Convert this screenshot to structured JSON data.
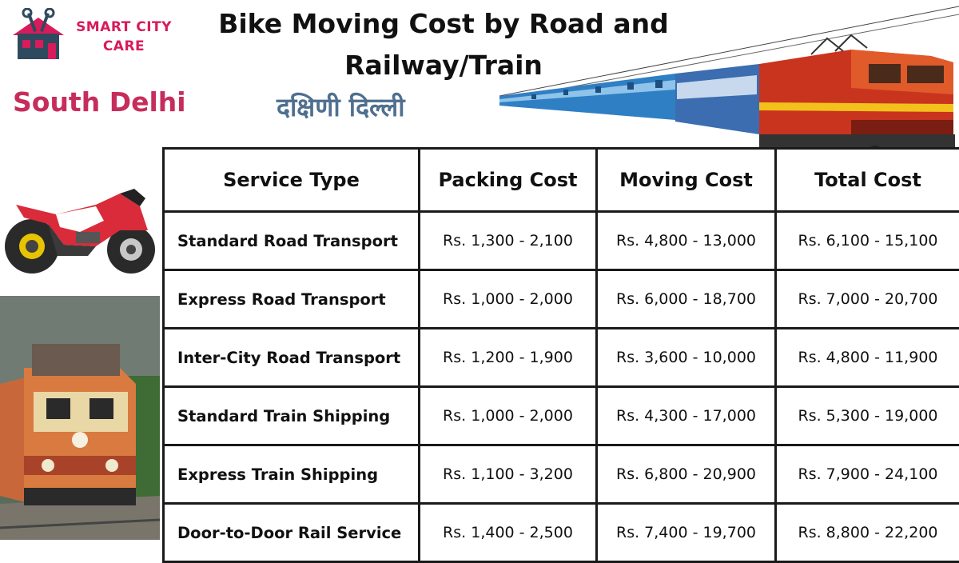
{
  "header": {
    "title_line1": "Bike Moving Cost by Road and",
    "title_line2": "Railway/Train",
    "location_en": "South Delhi",
    "location_hi": "दक्षिणी दिल्ली"
  },
  "logo": {
    "line1": "SMART CITY",
    "line2": "CARE",
    "icon": "house-with-tools-icon"
  },
  "images": {
    "top_right": "electric-passenger-train",
    "left_top": "red-sport-motorcycle",
    "left_bottom": "diesel-locomotive"
  },
  "colors": {
    "brand": "#d81b5a",
    "location_en": "#c72d5b",
    "location_hi": "#4f6f8e",
    "table_border": "#1a1a1a"
  },
  "table": {
    "headers": [
      "Service Type",
      "Packing Cost",
      "Moving Cost",
      "Total Cost"
    ],
    "rows": [
      [
        "Standard Road Transport",
        "Rs. 1,300 - 2,100",
        "Rs. 4,800 - 13,000",
        "Rs. 6,100 - 15,100"
      ],
      [
        "Express Road Transport",
        "Rs. 1,000 - 2,000",
        "Rs. 6,000 - 18,700",
        "Rs. 7,000 - 20,700"
      ],
      [
        "Inter-City Road Transport",
        "Rs. 1,200 - 1,900",
        "Rs. 3,600 - 10,000",
        "Rs. 4,800 - 11,900"
      ],
      [
        "Standard Train Shipping",
        "Rs. 1,000 - 2,000",
        "Rs. 4,300 - 17,000",
        "Rs. 5,300 - 19,000"
      ],
      [
        "Express Train Shipping",
        "Rs. 1,100 - 3,200",
        "Rs. 6,800 - 20,900",
        "Rs. 7,900 - 24,100"
      ],
      [
        "Door-to-Door Rail Service",
        "Rs. 1,400 - 2,500",
        "Rs. 7,400 - 19,700",
        "Rs. 8,800 - 22,200"
      ]
    ]
  }
}
